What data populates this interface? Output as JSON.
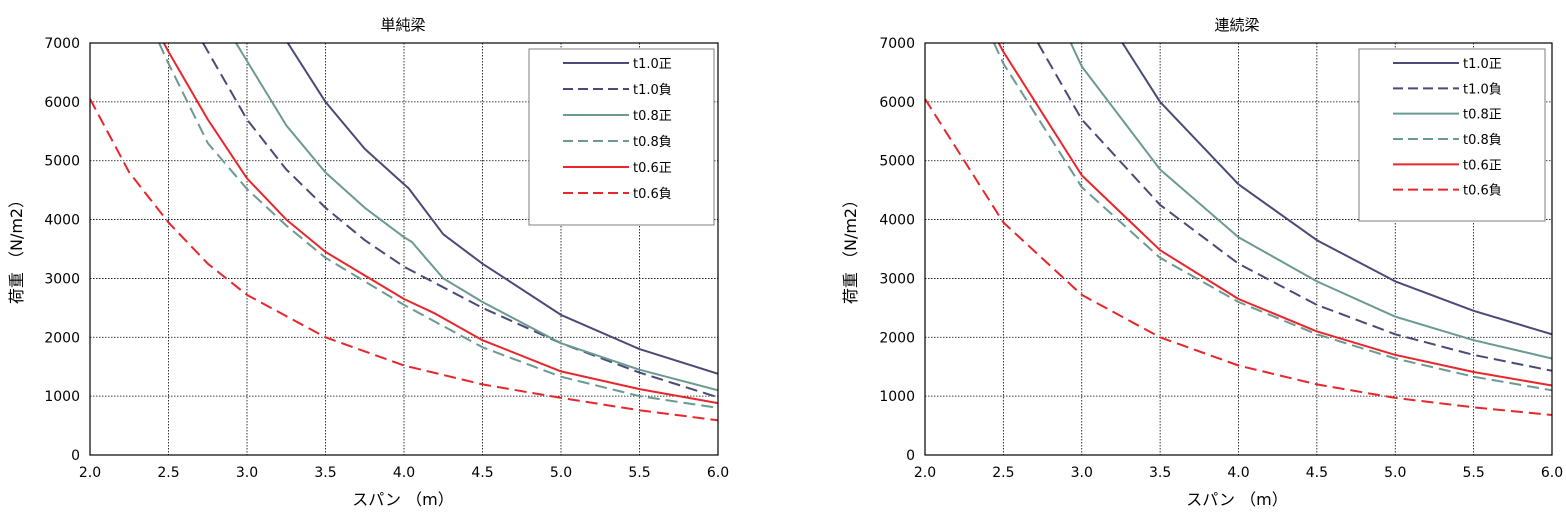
{
  "colors": {
    "t10": "#4a4a78",
    "t08": "#6a9a92",
    "t06": "#e8262b",
    "grid": "#000000",
    "frame": "#000000"
  },
  "charts": [
    {
      "title": "単純梁",
      "xlabel": "スパン （m）",
      "ylabel": "荷重 （N/m2）",
      "xticks": [
        "2.0",
        "2.5",
        "3.0",
        "3.5",
        "4.0",
        "4.5",
        "5.0",
        "5.5",
        "6.0"
      ],
      "yticks": [
        "0",
        "1000",
        "2000",
        "3000",
        "4000",
        "5000",
        "6000",
        "7000"
      ],
      "legend": [
        "t1.0正",
        "t1.0負",
        "t0.8正",
        "t0.8負",
        "t0.6正",
        "t0.6負"
      ]
    },
    {
      "title": "連続梁",
      "xlabel": "スパン （m）",
      "ylabel": "荷重 （N/m2）",
      "xticks": [
        "2.0",
        "2.5",
        "3.0",
        "3.5",
        "4.0",
        "4.5",
        "5.0",
        "5.5",
        "6.0"
      ],
      "yticks": [
        "0",
        "1000",
        "2000",
        "3000",
        "4000",
        "5000",
        "6000",
        "7000"
      ],
      "legend": [
        "t1.0正",
        "t1.0負",
        "t0.8正",
        "t0.8負",
        "t0.6正",
        "t0.6負"
      ]
    }
  ],
  "chart_data": [
    {
      "type": "line",
      "title": "単純梁",
      "xlabel": "スパン （m）",
      "ylabel": "荷重 （N/m2）",
      "xlim": [
        2.0,
        6.0
      ],
      "ylim": [
        0,
        7000
      ],
      "grid": true,
      "legend_position": "top-right",
      "series": [
        {
          "name": "t1.0正",
          "style": "solid",
          "color": "t10",
          "points": [
            [
              3.26,
              7000
            ],
            [
              3.5,
              6000
            ],
            [
              3.75,
              5200
            ],
            [
              4.0,
              4600
            ],
            [
              4.03,
              4530
            ],
            [
              4.25,
              3750
            ],
            [
              4.5,
              3250
            ],
            [
              5.0,
              2380
            ],
            [
              5.5,
              1800
            ],
            [
              6.0,
              1380
            ]
          ]
        },
        {
          "name": "t1.0負",
          "style": "dashed",
          "color": "t10",
          "points": [
            [
              2.72,
              7000
            ],
            [
              3.0,
              5700
            ],
            [
              3.25,
              4850
            ],
            [
              3.5,
              4200
            ],
            [
              3.75,
              3650
            ],
            [
              4.0,
              3200
            ],
            [
              4.5,
              2500
            ],
            [
              5.0,
              1900
            ],
            [
              5.5,
              1400
            ],
            [
              6.0,
              980
            ]
          ]
        },
        {
          "name": "t0.8正",
          "style": "solid",
          "color": "t08",
          "points": [
            [
              2.93,
              7000
            ],
            [
              3.25,
              5600
            ],
            [
              3.5,
              4800
            ],
            [
              3.75,
              4200
            ],
            [
              4.0,
              3700
            ],
            [
              4.05,
              3620
            ],
            [
              4.25,
              3000
            ],
            [
              4.5,
              2600
            ],
            [
              5.0,
              1900
            ],
            [
              5.5,
              1450
            ],
            [
              6.0,
              1100
            ]
          ]
        },
        {
          "name": "t0.8負",
          "style": "dashed",
          "color": "t08",
          "points": [
            [
              2.44,
              7000
            ],
            [
              2.5,
              6650
            ],
            [
              2.75,
              5300
            ],
            [
              3.0,
              4520
            ],
            [
              3.25,
              3900
            ],
            [
              3.5,
              3350
            ],
            [
              4.0,
              2550
            ],
            [
              4.5,
              1830
            ],
            [
              5.0,
              1330
            ],
            [
              5.5,
              1000
            ],
            [
              6.0,
              800
            ]
          ]
        },
        {
          "name": "t0.6正",
          "style": "solid",
          "color": "t06",
          "points": [
            [
              2.47,
              7000
            ],
            [
              2.5,
              6850
            ],
            [
              2.75,
              5700
            ],
            [
              3.0,
              4700
            ],
            [
              3.25,
              4000
            ],
            [
              3.5,
              3450
            ],
            [
              4.0,
              2650
            ],
            [
              4.2,
              2400
            ],
            [
              4.5,
              1950
            ],
            [
              5.0,
              1420
            ],
            [
              5.5,
              1120
            ],
            [
              6.0,
              880
            ]
          ]
        },
        {
          "name": "t0.6負",
          "style": "dashed",
          "color": "t06",
          "points": [
            [
              2.0,
              6050
            ],
            [
              2.25,
              4800
            ],
            [
              2.5,
              3950
            ],
            [
              2.75,
              3250
            ],
            [
              3.0,
              2720
            ],
            [
              3.5,
              2000
            ],
            [
              4.0,
              1520
            ],
            [
              4.5,
              1200
            ],
            [
              5.0,
              970
            ],
            [
              5.5,
              760
            ],
            [
              6.0,
              590
            ]
          ]
        }
      ]
    },
    {
      "type": "line",
      "title": "連続梁",
      "xlabel": "スパン （m）",
      "ylabel": "荷重 （N/m2）",
      "xlim": [
        2.0,
        6.0
      ],
      "ylim": [
        0,
        7000
      ],
      "grid": true,
      "legend_position": "top-right",
      "series": [
        {
          "name": "t1.0正",
          "style": "solid",
          "color": "t10",
          "points": [
            [
              3.26,
              7000
            ],
            [
              3.5,
              6000
            ],
            [
              4.0,
              4600
            ],
            [
              4.5,
              3650
            ],
            [
              5.0,
              2950
            ],
            [
              5.5,
              2450
            ],
            [
              6.0,
              2050
            ]
          ]
        },
        {
          "name": "t1.0負",
          "style": "dashed",
          "color": "t10",
          "points": [
            [
              2.72,
              7000
            ],
            [
              3.0,
              5700
            ],
            [
              3.5,
              4250
            ],
            [
              4.0,
              3250
            ],
            [
              4.5,
              2550
            ],
            [
              5.0,
              2050
            ],
            [
              5.5,
              1700
            ],
            [
              6.0,
              1430
            ]
          ]
        },
        {
          "name": "t0.8正",
          "style": "solid",
          "color": "t08",
          "points": [
            [
              2.93,
              7000
            ],
            [
              3.0,
              6600
            ],
            [
              3.5,
              4850
            ],
            [
              4.0,
              3700
            ],
            [
              4.5,
              2950
            ],
            [
              5.0,
              2350
            ],
            [
              5.5,
              1950
            ],
            [
              6.0,
              1640
            ]
          ]
        },
        {
          "name": "t0.8負",
          "style": "dashed",
          "color": "t08",
          "points": [
            [
              2.44,
              7000
            ],
            [
              2.5,
              6650
            ],
            [
              3.0,
              4550
            ],
            [
              3.5,
              3350
            ],
            [
              4.0,
              2600
            ],
            [
              4.5,
              2050
            ],
            [
              5.0,
              1640
            ],
            [
              5.5,
              1330
            ],
            [
              6.0,
              1100
            ]
          ]
        },
        {
          "name": "t0.6正",
          "style": "solid",
          "color": "t06",
          "points": [
            [
              2.47,
              7000
            ],
            [
              2.5,
              6850
            ],
            [
              3.0,
              4750
            ],
            [
              3.5,
              3480
            ],
            [
              4.0,
              2650
            ],
            [
              4.5,
              2100
            ],
            [
              5.0,
              1700
            ],
            [
              5.5,
              1410
            ],
            [
              6.0,
              1180
            ]
          ]
        },
        {
          "name": "t0.6負",
          "style": "dashed",
          "color": "t06",
          "points": [
            [
              2.0,
              6050
            ],
            [
              2.5,
              3950
            ],
            [
              3.0,
              2720
            ],
            [
              3.5,
              2000
            ],
            [
              4.0,
              1520
            ],
            [
              4.5,
              1200
            ],
            [
              5.0,
              970
            ],
            [
              5.5,
              810
            ],
            [
              6.0,
              680
            ]
          ]
        }
      ]
    }
  ]
}
